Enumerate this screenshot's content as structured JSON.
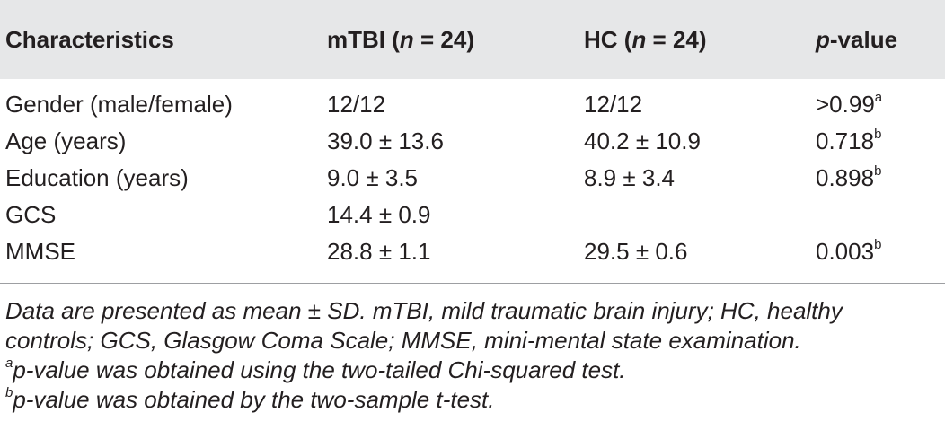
{
  "header": {
    "col1": "Characteristics",
    "col2_prefix": "mTBI (",
    "col2_n": "n",
    "col2_suffix": " = 24)",
    "col3_prefix": "HC (",
    "col3_n": "n",
    "col3_suffix": " = 24)",
    "col4_p": "p",
    "col4_suffix": "-value"
  },
  "rows": [
    {
      "label": "Gender (male/female)",
      "mtbi": "12/12",
      "hc": "12/12",
      "p": ">0.99",
      "sup": "a"
    },
    {
      "label": "Age (years)",
      "mtbi": "39.0 ± 13.6",
      "hc": "40.2 ± 10.9",
      "p": "0.718",
      "sup": "b"
    },
    {
      "label": "Education (years)",
      "mtbi": "9.0 ± 3.5",
      "hc": "8.9 ± 3.4",
      "p": "0.898",
      "sup": "b"
    },
    {
      "label": "GCS",
      "mtbi": "14.4 ± 0.9",
      "hc": "",
      "p": "",
      "sup": ""
    },
    {
      "label": "MMSE",
      "mtbi": "28.8 ± 1.1",
      "hc": "29.5 ± 0.6",
      "p": "0.003",
      "sup": "b"
    }
  ],
  "footnotes": {
    "line1": "Data are presented as mean ± SD. mTBI, mild traumatic brain injury; HC, healthy",
    "line2": "controls; GCS, Glasgow Coma Scale; MMSE, mini-mental state examination.",
    "a_marker": "a",
    "a_text": "p-value was obtained using the two-tailed Chi-squared test.",
    "b_marker": "b",
    "b_text": "p-value was obtained by the two-sample t-test."
  }
}
